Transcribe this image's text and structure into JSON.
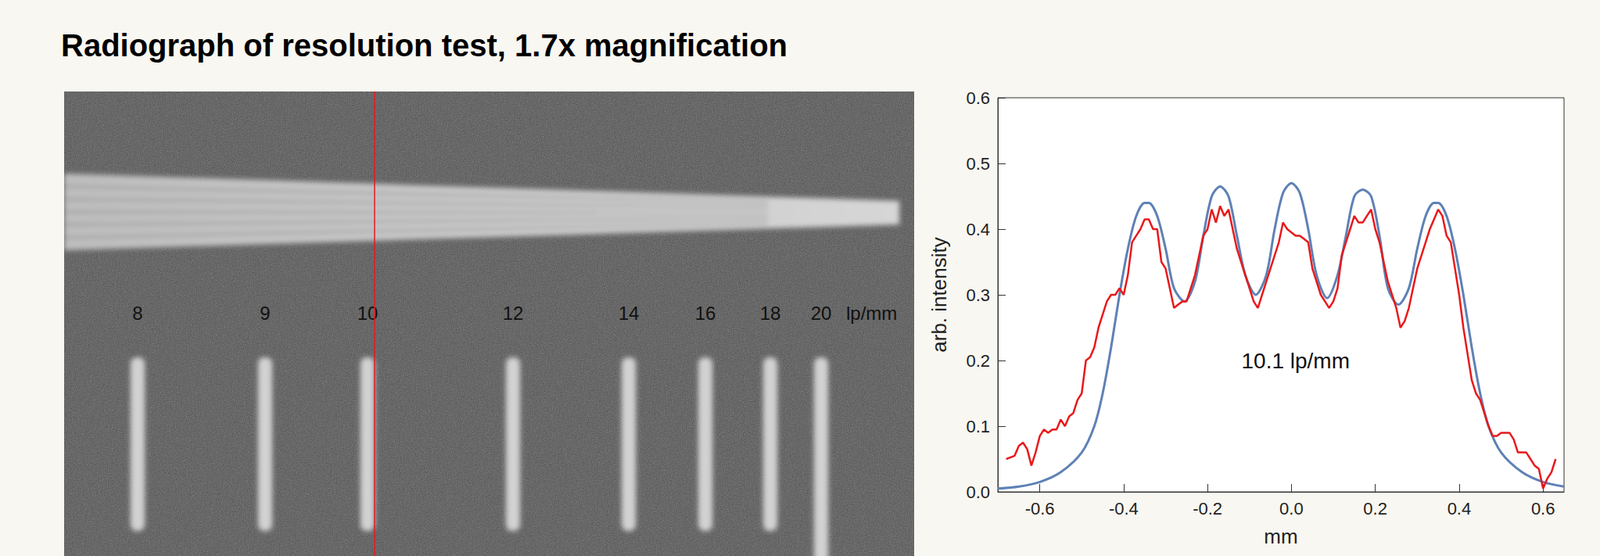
{
  "header": {
    "title": "Radiograph of resolution test, 1.7x magnification"
  },
  "radiograph": {
    "labels": [
      "8",
      "9",
      "10",
      "12",
      "14",
      "16",
      "18",
      "20"
    ],
    "unit": "lp/mm"
  },
  "chart_data": {
    "type": "line",
    "x_label": "mm",
    "y_label": "arb. intensity",
    "xlim": [
      -0.7,
      0.65
    ],
    "xticks": [
      -0.6,
      -0.4,
      -0.2,
      {
        "value": 0,
        "label": "0.0"
      },
      0.2,
      0.4,
      0.6
    ],
    "ylim": [
      0,
      0.6
    ],
    "yticks": [
      {
        "value": 0,
        "label": "0.0"
      },
      0.1,
      0.2,
      0.3,
      0.4,
      0.5,
      0.6
    ],
    "grid": false,
    "annotations": [
      {
        "text": "10.1 lp/mm",
        "x": 0.01,
        "y": 0.2
      }
    ],
    "series": [
      {
        "color": "#e8191b",
        "line_style": "solid",
        "x": [
          -0.68,
          -0.66,
          -0.65,
          -0.64,
          -0.63,
          -0.62,
          -0.61,
          -0.6,
          -0.59,
          -0.58,
          -0.57,
          -0.56,
          -0.55,
          -0.54,
          -0.53,
          -0.52,
          -0.51,
          -0.5,
          -0.49,
          -0.48,
          -0.47,
          -0.46,
          -0.45,
          -0.44,
          -0.43,
          -0.42,
          -0.41,
          -0.4,
          -0.39,
          -0.38,
          -0.37,
          -0.36,
          -0.35,
          -0.34,
          -0.33,
          -0.32,
          -0.31,
          -0.3,
          -0.29,
          -0.28,
          -0.27,
          -0.26,
          -0.25,
          -0.24,
          -0.23,
          -0.22,
          -0.21,
          -0.2,
          -0.19,
          -0.18,
          -0.17,
          -0.16,
          -0.15,
          -0.14,
          -0.13,
          -0.12,
          -0.11,
          -0.1,
          -0.09,
          -0.08,
          -0.07,
          -0.06,
          -0.05,
          -0.04,
          -0.03,
          -0.02,
          -0.01,
          0.0,
          0.01,
          0.02,
          0.03,
          0.04,
          0.05,
          0.06,
          0.07,
          0.08,
          0.09,
          0.1,
          0.11,
          0.12,
          0.13,
          0.14,
          0.15,
          0.16,
          0.17,
          0.18,
          0.19,
          0.2,
          0.21,
          0.22,
          0.23,
          0.24,
          0.25,
          0.26,
          0.27,
          0.28,
          0.29,
          0.3,
          0.31,
          0.32,
          0.33,
          0.34,
          0.35,
          0.36,
          0.37,
          0.38,
          0.39,
          0.4,
          0.41,
          0.42,
          0.43,
          0.44,
          0.45,
          0.46,
          0.47,
          0.48,
          0.49,
          0.5,
          0.51,
          0.52,
          0.53,
          0.54,
          0.55,
          0.56,
          0.57,
          0.58,
          0.59,
          0.6,
          0.61,
          0.62,
          0.63
        ],
        "values": [
          0.05,
          0.055,
          0.07,
          0.075,
          0.065,
          0.04,
          0.06,
          0.085,
          0.095,
          0.09,
          0.095,
          0.095,
          0.11,
          0.1,
          0.115,
          0.12,
          0.14,
          0.15,
          0.2,
          0.205,
          0.22,
          0.25,
          0.27,
          0.29,
          0.3,
          0.3,
          0.31,
          0.3,
          0.33,
          0.38,
          0.39,
          0.4,
          0.415,
          0.415,
          0.4,
          0.4,
          0.35,
          0.34,
          0.31,
          0.28,
          0.285,
          0.29,
          0.29,
          0.31,
          0.33,
          0.36,
          0.39,
          0.4,
          0.43,
          0.41,
          0.435,
          0.42,
          0.43,
          0.4,
          0.37,
          0.35,
          0.33,
          0.31,
          0.29,
          0.28,
          0.3,
          0.32,
          0.34,
          0.36,
          0.38,
          0.41,
          0.4,
          0.395,
          0.39,
          0.39,
          0.385,
          0.38,
          0.34,
          0.32,
          0.3,
          0.29,
          0.28,
          0.29,
          0.31,
          0.36,
          0.38,
          0.4,
          0.42,
          0.41,
          0.41,
          0.42,
          0.43,
          0.4,
          0.38,
          0.35,
          0.32,
          0.3,
          0.28,
          0.25,
          0.26,
          0.28,
          0.31,
          0.34,
          0.36,
          0.38,
          0.4,
          0.415,
          0.43,
          0.42,
          0.39,
          0.38,
          0.34,
          0.3,
          0.25,
          0.21,
          0.17,
          0.15,
          0.14,
          0.12,
          0.1,
          0.085,
          0.085,
          0.09,
          0.09,
          0.09,
          0.08,
          0.06,
          0.06,
          0.06,
          0.05,
          0.04,
          0.035,
          0.005,
          0.02,
          0.03,
          0.05
        ]
      },
      {
        "color": "#5e81b5",
        "line_style": "solid",
        "x": [
          -0.7,
          -0.65,
          -0.6,
          -0.55,
          -0.5,
          -0.47,
          -0.45,
          -0.43,
          -0.41,
          -0.39,
          -0.37,
          -0.35,
          -0.34,
          -0.32,
          -0.3,
          -0.28,
          -0.255,
          -0.23,
          -0.21,
          -0.19,
          -0.17,
          -0.15,
          -0.13,
          -0.11,
          -0.085,
          -0.06,
          -0.04,
          -0.02,
          0.0,
          0.02,
          0.04,
          0.06,
          0.085,
          0.11,
          0.13,
          0.15,
          0.17,
          0.19,
          0.21,
          0.23,
          0.255,
          0.28,
          0.3,
          0.32,
          0.34,
          0.35,
          0.37,
          0.39,
          0.41,
          0.43,
          0.45,
          0.47,
          0.5,
          0.55,
          0.6,
          0.65
        ],
        "values": [
          0.005,
          0.008,
          0.015,
          0.03,
          0.06,
          0.1,
          0.15,
          0.22,
          0.3,
          0.37,
          0.42,
          0.44,
          0.44,
          0.42,
          0.37,
          0.31,
          0.29,
          0.32,
          0.39,
          0.45,
          0.465,
          0.45,
          0.39,
          0.33,
          0.3,
          0.33,
          0.4,
          0.455,
          0.47,
          0.455,
          0.4,
          0.33,
          0.295,
          0.33,
          0.39,
          0.45,
          0.46,
          0.45,
          0.39,
          0.31,
          0.285,
          0.31,
          0.37,
          0.42,
          0.44,
          0.44,
          0.42,
          0.37,
          0.3,
          0.22,
          0.15,
          0.1,
          0.06,
          0.03,
          0.015,
          0.008
        ]
      }
    ]
  }
}
